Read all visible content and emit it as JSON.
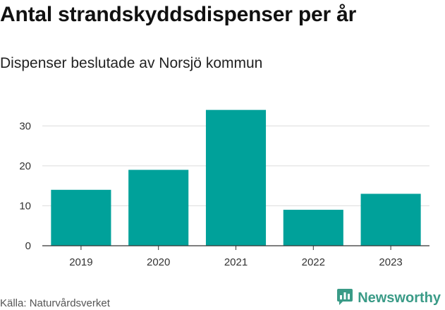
{
  "header": {
    "title": "Antal strandskyddsdispenser per år",
    "subtitle": "Dispenser beslutade av Norsjö kommun"
  },
  "footer": {
    "source": "Källa: Naturvårdsverket",
    "brand": "Newsworthy",
    "brand_icon": "newsworthy-logo-icon",
    "brand_color": "#3a9b87"
  },
  "chart_data": {
    "type": "bar",
    "title": "Antal strandskyddsdispenser per år",
    "subtitle": "Dispenser beslutade av Norsjö kommun",
    "xlabel": "",
    "ylabel": "",
    "categories": [
      "2019",
      "2020",
      "2021",
      "2022",
      "2023"
    ],
    "values": [
      14,
      19,
      34,
      9,
      13
    ],
    "ylim": [
      0,
      35
    ],
    "yticks": [
      0,
      10,
      20,
      30
    ],
    "grid": true,
    "bar_color": "#00a19a"
  }
}
